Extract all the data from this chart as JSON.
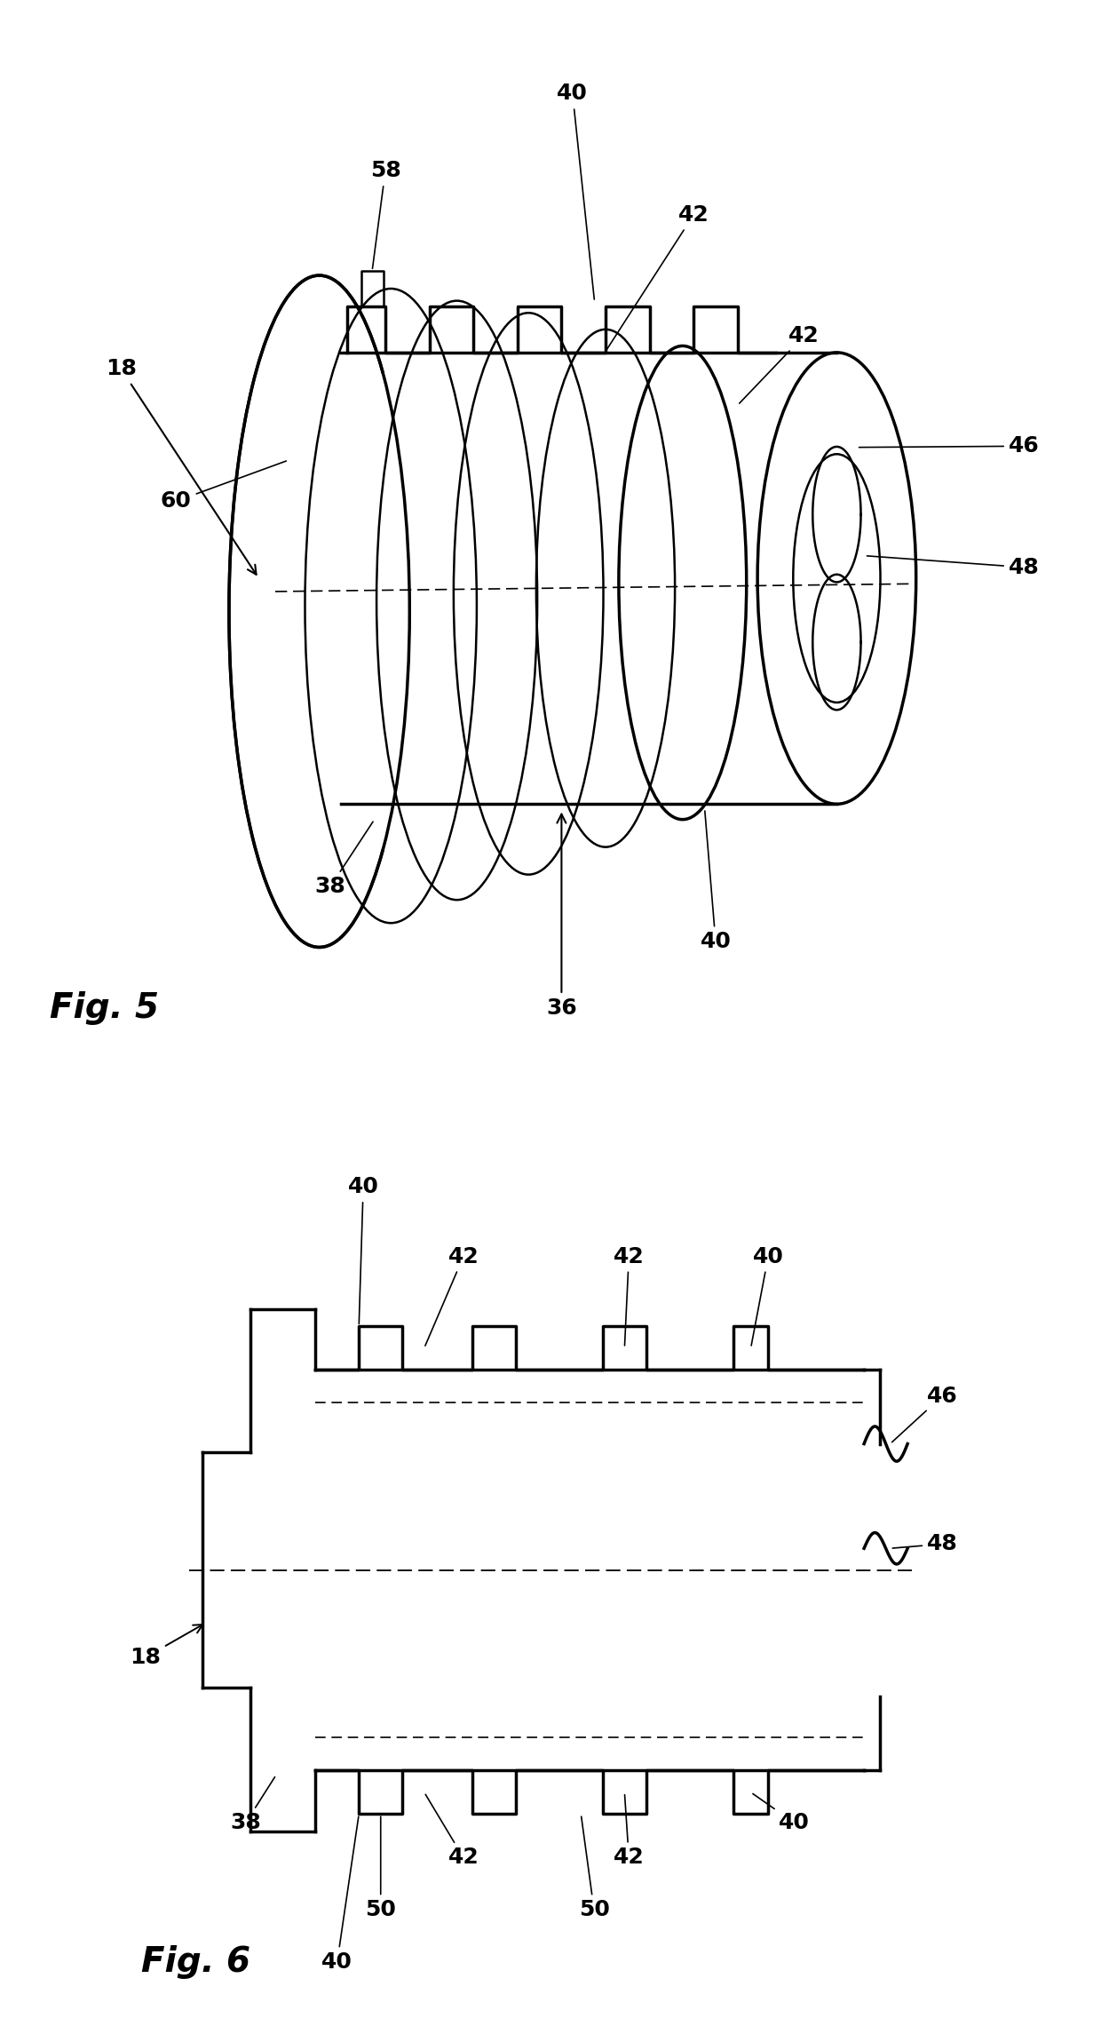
{
  "fig5_label": "Fig. 5",
  "fig6_label": "Fig. 6",
  "bg_color": "#ffffff",
  "line_color": "#000000",
  "annotation_fontsize": 18,
  "label_fontsize": 28,
  "dpi": 100,
  "figsize": [
    12.4,
    22.81
  ]
}
